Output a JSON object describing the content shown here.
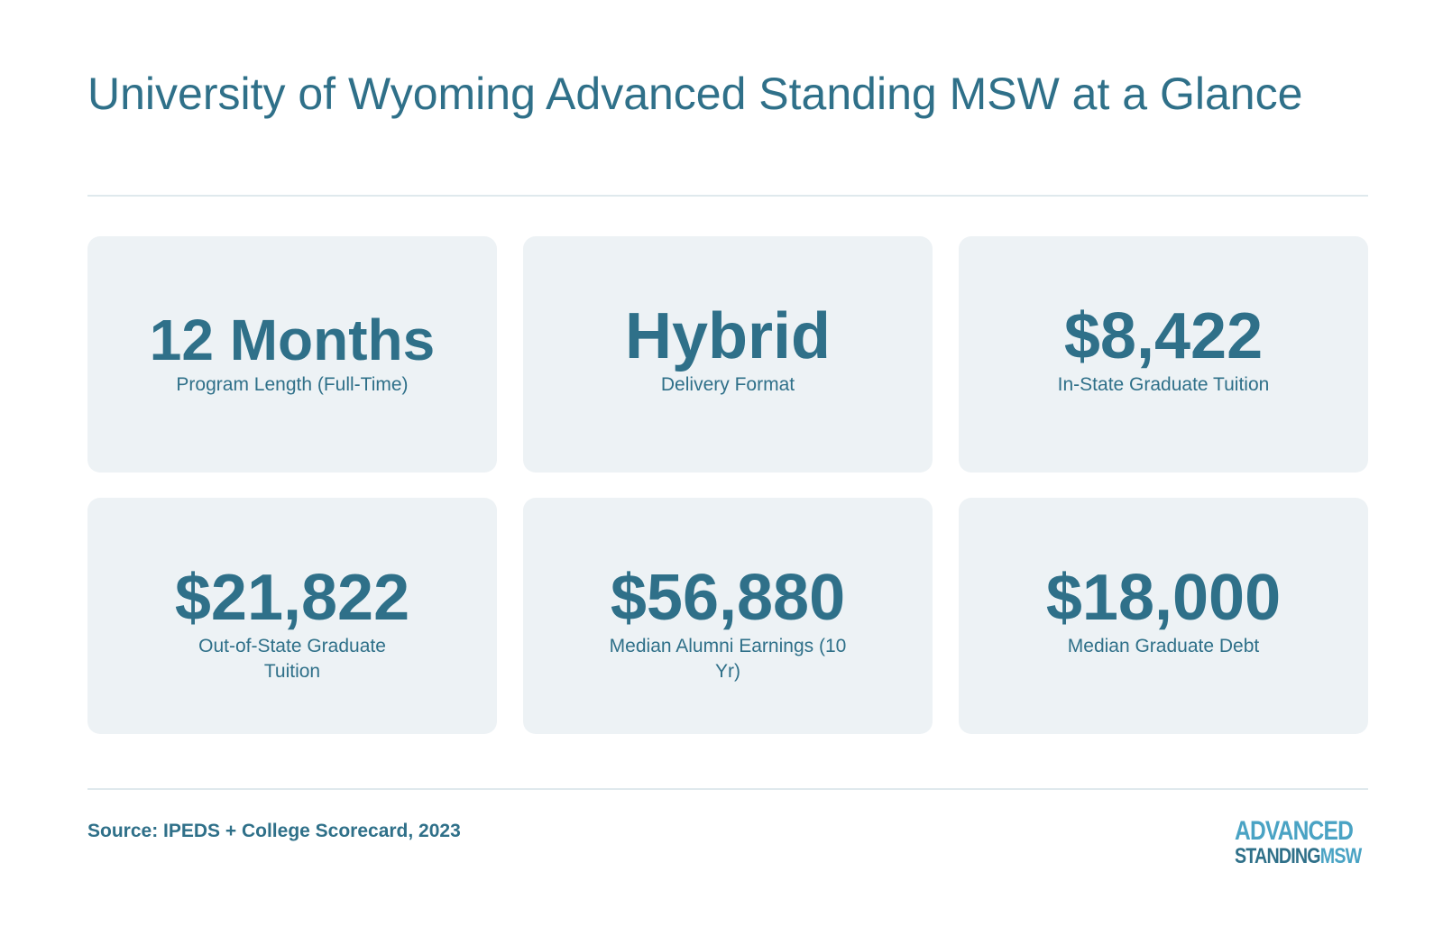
{
  "title": "University of Wyoming Advanced Standing MSW at a Glance",
  "cards": [
    {
      "value": "12 Months",
      "label": "Program Length (Full-Time)"
    },
    {
      "value": "Hybrid",
      "label": "Delivery Format"
    },
    {
      "value": "$8,422",
      "label": "In-State Graduate Tuition"
    },
    {
      "value": "$21,822",
      "label": "Out-of-State Graduate Tuition"
    },
    {
      "value": "$56,880",
      "label": "Median Alumni Earnings (10 Yr)"
    },
    {
      "value": "$18,000",
      "label": "Median Graduate Debt"
    }
  ],
  "footer": {
    "source": "Source: IPEDS + College Scorecard, 2023"
  },
  "logo": {
    "line1": "ADVANCED",
    "line2_part1": "STANDING",
    "line2_part2": "MSW"
  },
  "colors": {
    "text": "#2f7089",
    "card_background": "#edf2f5",
    "divider": "#dfe9ed",
    "logo_accent": "#4aa3c4"
  }
}
